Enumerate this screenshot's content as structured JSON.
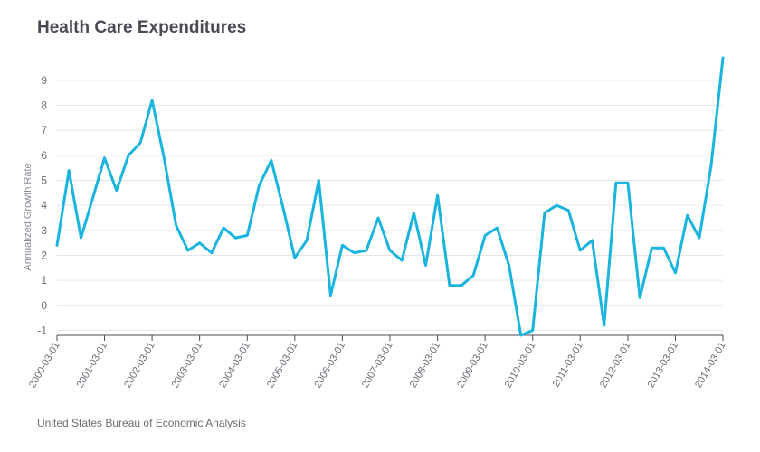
{
  "title": "Health Care Expenditures",
  "source": "United States Bureau of Economic Analysis",
  "chart_data": {
    "type": "line",
    "ylabel": "Annualized Growth Rate",
    "ylim": [
      -1.2,
      9.9
    ],
    "yticks": [
      -1,
      0,
      1,
      2,
      3,
      4,
      5,
      6,
      7,
      8,
      9
    ],
    "grid": true,
    "x_tick_labels": [
      "2000-03-01",
      "2001-03-01",
      "2002-03-01",
      "2003-03-01",
      "2004-03-01",
      "2005-03-01",
      "2006-03-01",
      "2007-03-01",
      "2008-03-01",
      "2009-03-01",
      "2010-03-01",
      "2011-03-01",
      "2012-03-01",
      "2013-03-01",
      "2014-03-01"
    ],
    "colors": {
      "line": "#1ab4de",
      "grid": "#e6e6e6",
      "axis": "#4a4a55"
    },
    "series": [
      {
        "x": [
          "2000-03-01",
          "2000-06-01",
          "2000-09-01",
          "2000-12-01",
          "2001-03-01",
          "2001-06-01",
          "2001-09-01",
          "2001-12-01",
          "2002-03-01",
          "2002-06-01",
          "2002-09-01",
          "2002-12-01",
          "2003-03-01",
          "2003-06-01",
          "2003-09-01",
          "2003-12-01",
          "2004-03-01",
          "2004-06-01",
          "2004-09-01",
          "2004-12-01",
          "2005-03-01",
          "2005-06-01",
          "2005-09-01",
          "2005-12-01",
          "2006-03-01",
          "2006-06-01",
          "2006-09-01",
          "2006-12-01",
          "2007-03-01",
          "2007-06-01",
          "2007-09-01",
          "2007-12-01",
          "2008-03-01",
          "2008-06-01",
          "2008-09-01",
          "2008-12-01",
          "2009-03-01",
          "2009-06-01",
          "2009-09-01",
          "2009-12-01",
          "2010-03-01",
          "2010-06-01",
          "2010-09-01",
          "2010-12-01",
          "2011-03-01",
          "2011-06-01",
          "2011-09-01",
          "2011-12-01",
          "2012-03-01",
          "2012-06-01",
          "2012-09-01",
          "2012-12-01",
          "2013-03-01",
          "2013-06-01",
          "2013-09-01",
          "2013-12-01",
          "2014-03-01"
        ],
        "values": [
          2.4,
          5.4,
          2.7,
          4.3,
          5.9,
          4.6,
          6.0,
          6.5,
          8.2,
          5.9,
          3.2,
          2.2,
          2.5,
          2.1,
          3.1,
          2.7,
          2.8,
          4.8,
          5.8,
          3.9,
          1.9,
          2.6,
          5.0,
          0.4,
          2.4,
          2.1,
          2.2,
          3.5,
          2.2,
          1.8,
          3.7,
          1.6,
          4.4,
          0.8,
          0.8,
          1.2,
          2.8,
          3.1,
          1.6,
          -1.2,
          -1.0,
          3.7,
          4.0,
          3.8,
          2.2,
          2.6,
          -0.8,
          4.9,
          4.9,
          0.3,
          2.3,
          2.3,
          1.3,
          3.6,
          2.7,
          5.6,
          9.9
        ]
      }
    ]
  }
}
